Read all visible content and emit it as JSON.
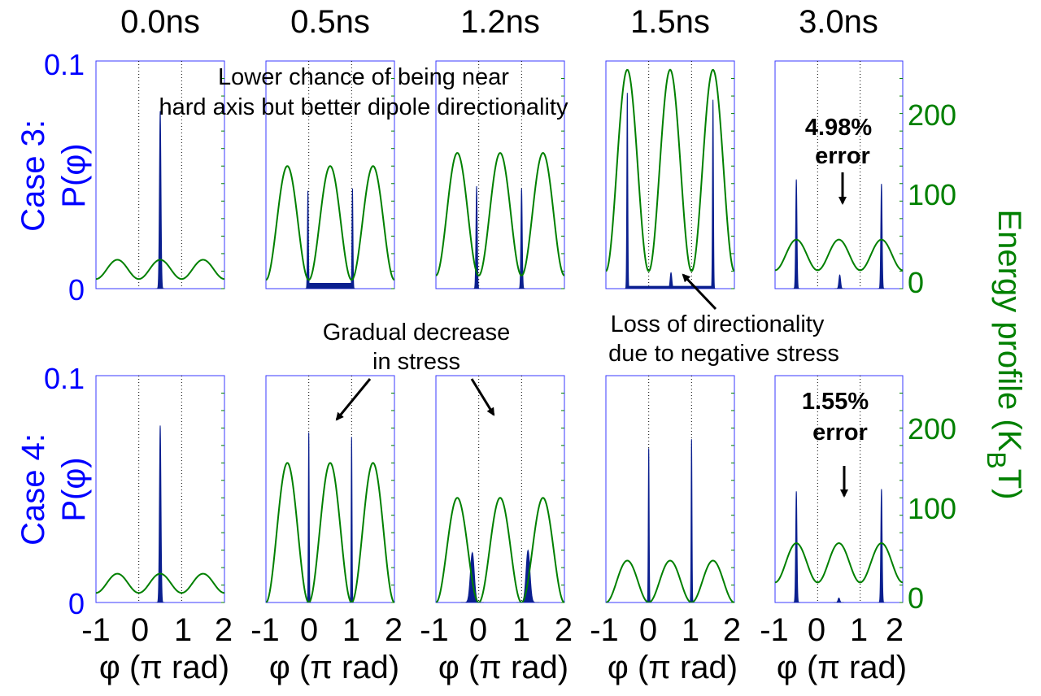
{
  "colors": {
    "probability": "#0000ff",
    "energy": "#008000",
    "histogram": "#0a1f8f",
    "annotation": "#000000"
  },
  "chart_data": {
    "type": "histogram-with-line-overlay",
    "time_labels": [
      "0.0ns",
      "0.5ns",
      "1.2ns",
      "1.5ns",
      "3.0ns"
    ],
    "xlabel": "φ (π rad)",
    "xlim": [
      -1,
      2
    ],
    "xticks": [
      "-1",
      "0",
      "1",
      "2"
    ],
    "left_ylim": [
      0,
      0.1
    ],
    "left_yticks": [
      "0",
      "0.1"
    ],
    "right_ylim": [
      0,
      260
    ],
    "right_yticks": [
      "0",
      "100",
      "200"
    ],
    "right_ylabel_main": "Energy profile (K",
    "right_ylabel_sub": "B",
    "right_ylabel_end": "T)",
    "rows": [
      {
        "label_line1": "Case 3:",
        "label_line2": "P(φ)",
        "panels": [
          {
            "energy": {
              "amp": 22,
              "offset": 11,
              "period": 1,
              "phase": 0.5
            },
            "peaks": [
              {
                "x": 0.5,
                "h": 0.078,
                "w": 0.035
              }
            ],
            "floor": null
          },
          {
            "energy": {
              "amp": 130,
              "offset": 10,
              "period": 1,
              "phase": 0.5
            },
            "peaks": [
              {
                "x": -0.02,
                "h": 0.043,
                "w": 0.022
              },
              {
                "x": 1.02,
                "h": 0.044,
                "w": 0.022
              }
            ],
            "floor": {
              "x0": -0.02,
              "x1": 1.02,
              "h": 0.0025
            }
          },
          {
            "energy": {
              "amp": 140,
              "offset": 15,
              "period": 1,
              "phase": 0.5
            },
            "peaks": [
              {
                "x": -0.05,
                "h": 0.045,
                "w": 0.03
              },
              {
                "x": 1.0,
                "h": 0.044,
                "w": 0.03
              }
            ],
            "floor": null
          },
          {
            "energy": {
              "amp": 230,
              "offset": 20,
              "period": 1,
              "phase": 0.5
            },
            "peaks": [
              {
                "x": -0.5,
                "h": 0.086,
                "w": 0.022
              },
              {
                "x": 1.5,
                "h": 0.083,
                "w": 0.022
              },
              {
                "x": 0.52,
                "h": 0.007,
                "w": 0.04
              }
            ],
            "floor": {
              "x0": -0.5,
              "x1": 1.5,
              "h": 0.0012
            }
          },
          {
            "energy": {
              "amp": 35,
              "offset": 21,
              "period": 1,
              "phase": 0.5
            },
            "peaks": [
              {
                "x": -0.5,
                "h": 0.048,
                "w": 0.03
              },
              {
                "x": 1.5,
                "h": 0.046,
                "w": 0.03
              },
              {
                "x": 0.52,
                "h": 0.006,
                "w": 0.04
              }
            ],
            "floor": null
          }
        ],
        "percent_error": "4.98%",
        "error_word": "error"
      },
      {
        "label_line1": "Case 4:",
        "label_line2": "P(φ)",
        "panels": [
          {
            "energy": {
              "amp": 22,
              "offset": 11,
              "period": 1,
              "phase": 0.5
            },
            "peaks": [
              {
                "x": 0.5,
                "h": 0.078,
                "w": 0.035
              }
            ],
            "floor": null
          },
          {
            "energy": {
              "amp": 160,
              "offset": 0,
              "period": 1,
              "phase": 0.5
            },
            "peaks": [
              {
                "x": 0.0,
                "h": 0.075,
                "w": 0.02
              },
              {
                "x": 1.0,
                "h": 0.073,
                "w": 0.02
              }
            ],
            "floor": null
          },
          {
            "energy": {
              "amp": 120,
              "offset": 0,
              "period": 1,
              "phase": 0.5
            },
            "peaks": [
              {
                "x": -0.15,
                "h": 0.022,
                "w": 0.09
              },
              {
                "x": 1.15,
                "h": 0.023,
                "w": 0.09
              }
            ],
            "floor": null
          },
          {
            "energy": {
              "amp": 48,
              "offset": 0,
              "period": 1,
              "phase": 0.5
            },
            "peaks": [
              {
                "x": 0.0,
                "h": 0.068,
                "w": 0.02
              },
              {
                "x": 1.0,
                "h": 0.072,
                "w": 0.02
              }
            ],
            "floor": null
          },
          {
            "energy": {
              "amp": 45,
              "offset": 23,
              "period": 1,
              "phase": 0.5
            },
            "peaks": [
              {
                "x": -0.5,
                "h": 0.049,
                "w": 0.03
              },
              {
                "x": 1.5,
                "h": 0.05,
                "w": 0.03
              },
              {
                "x": 0.5,
                "h": 0.002,
                "w": 0.04
              }
            ],
            "floor": null
          }
        ],
        "percent_error": "1.55%",
        "error_word": "error"
      }
    ],
    "annotations": {
      "case3_line1": "Lower chance of being near",
      "case3_line2": "hard axis but better dipole directionality",
      "gradual_line1": "Gradual decrease",
      "gradual_line2": "in stress",
      "loss_line1": "Loss of directionality",
      "loss_line2": "due to negative stress"
    }
  }
}
